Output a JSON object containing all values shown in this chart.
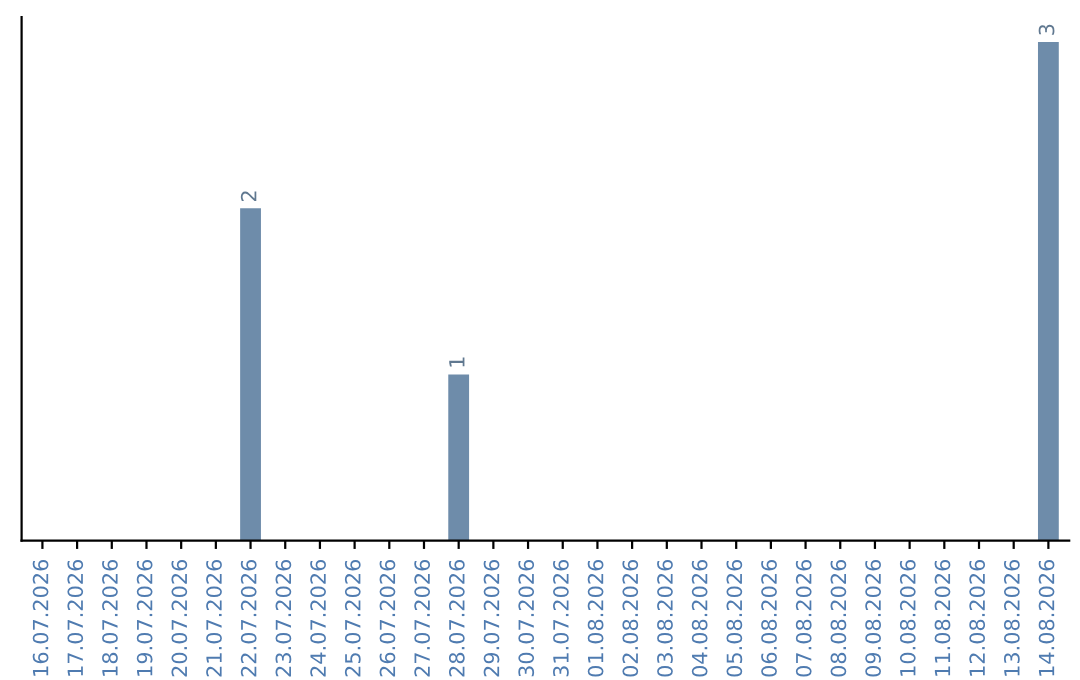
{
  "chart_data": {
    "type": "bar",
    "categories": [
      "16.07.2026",
      "17.07.2026",
      "18.07.2026",
      "19.07.2026",
      "20.07.2026",
      "21.07.2026",
      "22.07.2026",
      "23.07.2026",
      "24.07.2026",
      "25.07.2026",
      "26.07.2026",
      "27.07.2026",
      "28.07.2026",
      "29.07.2026",
      "30.07.2026",
      "31.07.2026",
      "01.08.2026",
      "02.08.2026",
      "03.08.2026",
      "04.08.2026",
      "05.08.2026",
      "06.08.2026",
      "07.08.2026",
      "08.08.2026",
      "09.08.2026",
      "10.08.2026",
      "11.08.2026",
      "12.08.2026",
      "13.08.2026",
      "14.08.2026"
    ],
    "values": [
      0,
      0,
      0,
      0,
      0,
      0,
      2,
      0,
      0,
      0,
      0,
      0,
      1,
      0,
      0,
      0,
      0,
      0,
      0,
      0,
      0,
      0,
      0,
      0,
      0,
      0,
      0,
      0,
      0,
      3
    ],
    "value_labels": [
      null,
      null,
      null,
      null,
      null,
      null,
      "2",
      null,
      null,
      null,
      null,
      null,
      "1",
      null,
      null,
      null,
      null,
      null,
      null,
      null,
      null,
      null,
      null,
      null,
      null,
      null,
      null,
      null,
      null,
      "3"
    ],
    "color": "#6e8caa",
    "tick_labels": "x",
    "grid": false,
    "legend": false
  }
}
